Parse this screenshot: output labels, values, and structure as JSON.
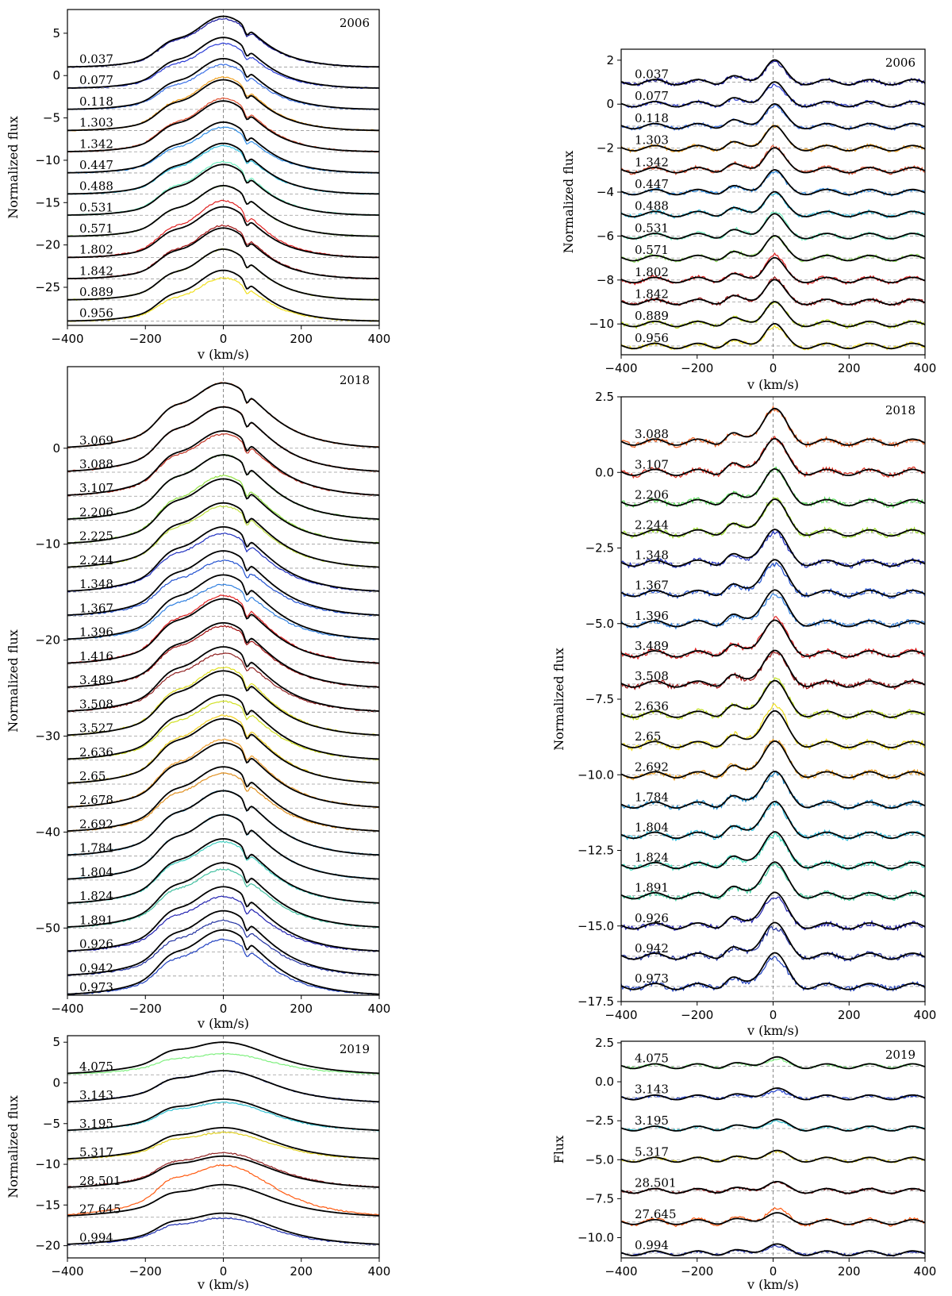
{
  "chart_data": [
    {
      "id": "left-2006",
      "type": "line",
      "year_label": "2006",
      "xlabel": "v (km/s)",
      "ylabel": "Normalized flux",
      "xlim": [
        -400,
        400
      ],
      "ylim": [
        -29.5,
        7.8
      ],
      "xticks": [
        -400,
        -200,
        0,
        200,
        400
      ],
      "yticks": [
        5,
        0,
        -5,
        -10,
        -15,
        -20,
        -25
      ],
      "xticklabels": [
        "−400",
        "−200",
        "0",
        "200",
        "400"
      ],
      "yticklabels": [
        "5",
        "0",
        "−5",
        "−10",
        "−15",
        "−20",
        "−25"
      ],
      "profile": {
        "peak": 6.0,
        "width": 0.42,
        "blue_shoulder": true,
        "absorption_notch": true
      },
      "offsets": [
        1,
        -1.5,
        -4,
        -6.5,
        -9,
        -11.5,
        -14,
        -16.5,
        -19,
        -21.5,
        -24,
        -26.5,
        -29
      ],
      "labels": [
        "0.037",
        "0.077",
        "0.118",
        "1.303",
        "1.342",
        "0.447",
        "0.488",
        "0.531",
        "0.571",
        "1.802",
        "1.842",
        "0.889",
        "0.956"
      ],
      "colors": [
        "#1a1aa0",
        "#2a3bd6",
        "#3a70e6",
        "#f0a020",
        "#e05030",
        "#2f8fe8",
        "#30c0e0",
        "#70f0c0",
        "#90e060",
        "#e02020",
        "#a01010",
        "#c0e020",
        "#f0e020"
      ],
      "obs_scale": [
        0.95,
        0.88,
        0.88,
        1.05,
        1.05,
        0.9,
        0.95,
        1.05,
        1.0,
        1.12,
        1.05,
        1.0,
        0.85
      ]
    },
    {
      "id": "right-2006",
      "type": "line",
      "year_label": "2006",
      "xlabel": "v (km/s)",
      "ylabel": "Normalized flux",
      "xlim": [
        -400,
        400
      ],
      "ylim": [
        -11.4,
        2.5
      ],
      "xticks": [
        -400,
        -200,
        0,
        200,
        400
      ],
      "yticks": [
        2,
        0,
        -2,
        -4,
        -6,
        -8,
        -10
      ],
      "xticklabels": [
        "−400",
        "−200",
        "0",
        "200",
        "400"
      ],
      "yticklabels": [
        "2",
        "0",
        "−2",
        "−4",
        "−6",
        "−8",
        "−10"
      ],
      "profile": {
        "peak": 1.0,
        "width": 0.09,
        "ripple": 0.12
      },
      "offsets": [
        1,
        0,
        -1,
        -2,
        -3,
        -4,
        -5,
        -6,
        -7,
        -8,
        -9,
        -10,
        -11
      ],
      "labels": [
        "0.037",
        "0.077",
        "0.118",
        "1.303",
        "1.342",
        "0.447",
        "0.488",
        "0.531",
        "0.571",
        "1.802",
        "1.842",
        "0.889",
        "0.956"
      ],
      "colors": [
        "#1a1aa0",
        "#2a3bd6",
        "#3a70e6",
        "#f0a020",
        "#e05030",
        "#2f8fe8",
        "#30c0e0",
        "#70f0c0",
        "#90e060",
        "#e02020",
        "#a01010",
        "#c0e020",
        "#f0e020"
      ],
      "obs_scale": [
        0.9,
        0.85,
        0.9,
        1.0,
        1.05,
        0.9,
        0.95,
        1.1,
        1.0,
        1.15,
        1.05,
        1.0,
        0.9
      ]
    },
    {
      "id": "left-2018",
      "type": "line",
      "year_label": "2018",
      "xlabel": "v (km/s)",
      "ylabel": "Normalized flux",
      "xlim": [
        -400,
        400
      ],
      "ylim": [
        -57,
        8.5
      ],
      "xticks": [
        -400,
        -200,
        0,
        200,
        400
      ],
      "yticks": [
        0,
        -10,
        -20,
        -30,
        -40,
        -50
      ],
      "xticklabels": [
        "−400",
        "−200",
        "0",
        "200",
        "400"
      ],
      "yticklabels": [
        "0",
        "−10",
        "−20",
        "−30",
        "−40",
        "−50"
      ],
      "profile": {
        "peak": 6.8,
        "width": 0.5,
        "blue_shoulder": true,
        "absorption_notch": true
      },
      "offsets": [
        0,
        -2.5,
        -5,
        -7.5,
        -10,
        -12.5,
        -15,
        -17.5,
        -20,
        -22.5,
        -25,
        -27.5,
        -30,
        -32.5,
        -35,
        -37.5,
        -40,
        -42.5,
        -45,
        -47.5,
        -50,
        -52.5,
        -55,
        -57
      ],
      "labels": [
        "3.069",
        "3.088",
        "3.107",
        "2.206",
        "2.225",
        "2.244",
        "1.348",
        "1.367",
        "1.396",
        "1.416",
        "3.489",
        "3.508",
        "3.527",
        "2.636",
        "2.65",
        "2.678",
        "2.692",
        "1.784",
        "1.804",
        "1.824",
        "1.891",
        "0.926",
        "0.942",
        "0.973"
      ],
      "colors": [
        "#f06020",
        "#e04020",
        "#c03020",
        "#50c030",
        "#90e040",
        "#c0e040",
        "#2030c0",
        "#2050d0",
        "#3080e0",
        "#e02020",
        "#a01010",
        "#902020",
        "#e0e020",
        "#d0e020",
        "#f0d020",
        "#f0a030",
        "#e09020",
        "#2090d0",
        "#30b0e0",
        "#40d0c0",
        "#40c0a0",
        "#2020b0",
        "#2030a0",
        "#2040c0"
      ],
      "obs_scale": [
        1.0,
        1.0,
        0.95,
        1.0,
        1.05,
        0.95,
        0.9,
        0.85,
        0.85,
        1.05,
        0.95,
        0.9,
        1.05,
        0.9,
        1.05,
        1.05,
        0.9,
        1.0,
        1.0,
        0.95,
        0.9,
        0.85,
        0.85,
        0.85
      ]
    },
    {
      "id": "right-2018",
      "type": "line",
      "year_label": "2018",
      "xlabel": "v (km/s)",
      "ylabel": "Normalized flux",
      "xlim": [
        -400,
        400
      ],
      "ylim": [
        -17.5,
        2.5
      ],
      "xticks": [
        -400,
        -200,
        0,
        200,
        400
      ],
      "yticks": [
        2.5,
        0.0,
        -2.5,
        -5.0,
        -7.5,
        -10.0,
        -12.5,
        -15.0,
        -17.5
      ],
      "xticklabels": [
        "−400",
        "−200",
        "0",
        "200",
        "400"
      ],
      "yticklabels": [
        "2.5",
        "0.0",
        "−2.5",
        "−5.0",
        "−7.5",
        "−10.0",
        "−12.5",
        "−15.0",
        "−17.5"
      ],
      "profile": {
        "peak": 1.1,
        "width": 0.11,
        "ripple": 0.1
      },
      "offsets": [
        1,
        0,
        -1,
        -2,
        -3,
        -4,
        -5,
        -6,
        -7,
        -8,
        -9,
        -10,
        -11,
        -12,
        -13,
        -14,
        -15,
        -16,
        -17
      ],
      "labels": [
        "3.088",
        "3.107",
        "2.206",
        "2.244",
        "1.348",
        "1.367",
        "1.396",
        "3.489",
        "3.508",
        "2.636",
        "2.65",
        "2.692",
        "1.784",
        "1.804",
        "1.824",
        "1.891",
        "0.926",
        "0.942",
        "0.973"
      ],
      "colors": [
        "#f06020",
        "#e03020",
        "#60e060",
        "#a0e030",
        "#2030c0",
        "#2050d0",
        "#3080e0",
        "#e02020",
        "#a01010",
        "#c0e020",
        "#f0e020",
        "#f0a020",
        "#2090d0",
        "#30c0e0",
        "#40e0c0",
        "#40d0a0",
        "#2020b0",
        "#2030a0",
        "#2040c0"
      ],
      "obs_scale": [
        1.0,
        1.0,
        1.0,
        1.0,
        0.9,
        0.85,
        0.85,
        1.05,
        0.95,
        1.05,
        1.15,
        1.05,
        0.95,
        0.95,
        0.9,
        0.9,
        0.85,
        0.85,
        0.85
      ]
    },
    {
      "id": "left-2019",
      "type": "line",
      "year_label": "2019",
      "xlabel": "v (km/s)",
      "ylabel": "Normalized flux",
      "xlim": [
        -400,
        400
      ],
      "ylim": [
        -21.5,
        5.8
      ],
      "xticks": [
        -400,
        -200,
        0,
        200,
        400
      ],
      "yticks": [
        5,
        0,
        -5,
        -10,
        -15,
        -20
      ],
      "xticklabels": [
        "−400",
        "−200",
        "0",
        "200",
        "400"
      ],
      "yticklabels": [
        "5",
        "0",
        "−5",
        "−10",
        "−15",
        "−20"
      ],
      "profile": {
        "peak": 4.0,
        "width": 0.6,
        "blue_shoulder": true,
        "absorption_notch": false
      },
      "offsets": [
        1,
        -2.5,
        -6,
        -9.5,
        -13,
        -16.5,
        -20
      ],
      "labels": [
        "4.075",
        "3.143",
        "3.195",
        "5.317",
        "28.501",
        "27.645",
        "0.994"
      ],
      "colors": [
        "#80f080",
        "#2040d0",
        "#30c0d0",
        "#e0d020",
        "#902020",
        "#ff5a10",
        "#2030b0"
      ],
      "obs_scale": [
        0.65,
        1.0,
        0.9,
        0.85,
        1.1,
        1.6,
        0.85
      ]
    },
    {
      "id": "right-2019",
      "type": "line",
      "year_label": "2019",
      "xlabel": "v (km/s)",
      "ylabel": "Flux",
      "xlim": [
        -400,
        400
      ],
      "ylim": [
        -11.3,
        2.6
      ],
      "xticks": [
        -400,
        -200,
        0,
        200,
        400
      ],
      "yticks": [
        2.5,
        0.0,
        -2.5,
        -5.0,
        -7.5,
        -10.0
      ],
      "xticklabels": [
        "−400",
        "−200",
        "0",
        "200",
        "400"
      ],
      "yticklabels": [
        "2.5",
        "0.0",
        "−2.5",
        "−5.0",
        "−7.5",
        "−10.0"
      ],
      "profile": {
        "peak": 0.55,
        "width": 0.1,
        "ripple": 0.15
      },
      "offsets": [
        1,
        -1,
        -3,
        -5,
        -7,
        -9,
        -11
      ],
      "labels": [
        "4.075",
        "3.143",
        "3.195",
        "5.317",
        "28.501",
        "27.645",
        "0.994"
      ],
      "colors": [
        "#80f080",
        "#2040d0",
        "#30c0d0",
        "#e0d020",
        "#902020",
        "#ff5a10",
        "#2030b0"
      ],
      "obs_scale": [
        0.8,
        0.7,
        0.8,
        0.9,
        0.9,
        1.5,
        0.8
      ]
    }
  ]
}
